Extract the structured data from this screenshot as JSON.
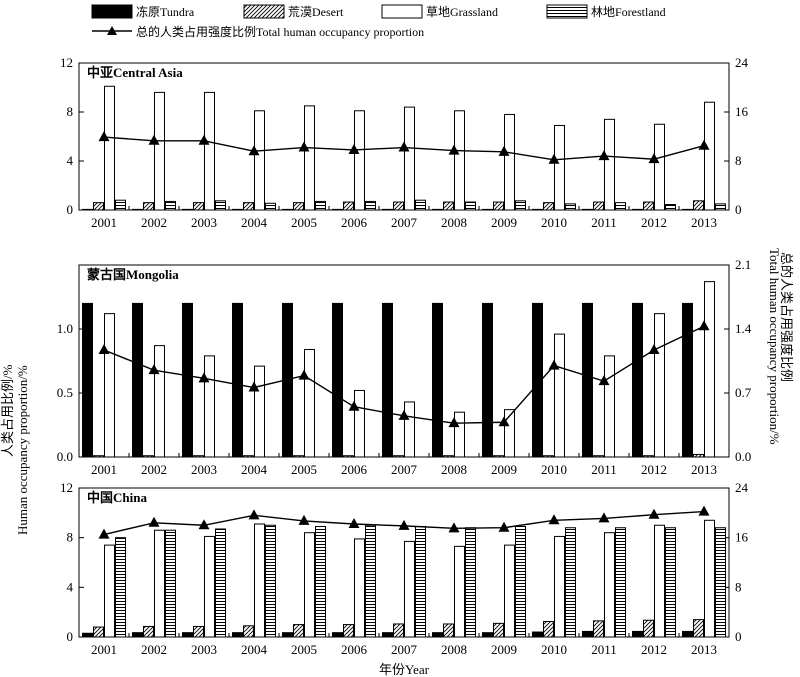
{
  "legend": {
    "tundra": "冻原Tundra",
    "desert": "荒漠Desert",
    "grassland": "草地Grassland",
    "forestland": "林地Forestland",
    "total": "总的人类占用强度比例Total human occupancy proportion"
  },
  "axis_labels": {
    "ylabel_left": "人类占用比例/%",
    "ylabel_left_en": "Human occupancy proportion/%",
    "ylabel_right": "总的人类占用强度比例",
    "ylabel_right_en": "Total human occupancy proportion/%",
    "xlabel": "年份Year"
  },
  "chart_data": [
    {
      "type": "bar",
      "title": "中亚Central Asia",
      "categories": [
        "2001",
        "2002",
        "2003",
        "2004",
        "2005",
        "2006",
        "2007",
        "2008",
        "2009",
        "2010",
        "2011",
        "2012",
        "2013"
      ],
      "ylim": [
        0,
        12
      ],
      "yticks": [
        "0",
        "4",
        "8",
        "12"
      ],
      "y2lim": [
        0,
        24
      ],
      "y2ticks": [
        "0",
        "8",
        "16",
        "24"
      ],
      "series": [
        {
          "name": "冻原Tundra",
          "values": [
            0.05,
            0.05,
            0.05,
            0.05,
            0.05,
            0.05,
            0.05,
            0.05,
            0.05,
            0.05,
            0.05,
            0.05,
            0.05
          ]
        },
        {
          "name": "荒漠Desert",
          "values": [
            0.6,
            0.6,
            0.6,
            0.6,
            0.6,
            0.65,
            0.65,
            0.65,
            0.65,
            0.6,
            0.65,
            0.65,
            0.75
          ]
        },
        {
          "name": "草地Grassland",
          "values": [
            10.1,
            9.6,
            9.6,
            8.1,
            8.5,
            8.1,
            8.4,
            8.1,
            7.8,
            6.9,
            7.4,
            7.0,
            8.8
          ]
        },
        {
          "name": "林地Forestland",
          "values": [
            0.8,
            0.7,
            0.75,
            0.55,
            0.7,
            0.7,
            0.8,
            0.65,
            0.75,
            0.5,
            0.6,
            0.45,
            0.5
          ]
        }
      ],
      "line": {
        "name": "总的人类占用强度比例Total human occupancy proportion",
        "values": [
          11.9,
          11.3,
          11.3,
          9.6,
          10.2,
          9.8,
          10.2,
          9.7,
          9.5,
          8.2,
          8.8,
          8.3,
          10.5
        ]
      }
    },
    {
      "type": "bar",
      "title": "蒙古国Mongolia",
      "categories": [
        "2001",
        "2002",
        "2003",
        "2004",
        "2005",
        "2006",
        "2007",
        "2008",
        "2009",
        "2010",
        "2011",
        "2012",
        "2013"
      ],
      "ylim": [
        0,
        1.5
      ],
      "yticks": [
        "0.0",
        "0.5",
        "1.0"
      ],
      "y2lim": [
        0,
        2.1
      ],
      "y2ticks": [
        "0.0",
        "0.7",
        "1.4",
        "2.1"
      ],
      "series": [
        {
          "name": "冻原Tundra",
          "values": [
            1.2,
            1.2,
            1.2,
            1.2,
            1.2,
            1.2,
            1.2,
            1.2,
            1.2,
            1.2,
            1.2,
            1.2,
            1.2
          ]
        },
        {
          "name": "荒漠Desert",
          "values": [
            0.01,
            0.01,
            0.01,
            0.01,
            0.01,
            0.01,
            0.01,
            0.01,
            0.01,
            0.01,
            0.01,
            0.01,
            0.02
          ]
        },
        {
          "name": "草地Grassland",
          "values": [
            1.12,
            0.87,
            0.79,
            0.71,
            0.84,
            0.52,
            0.43,
            0.35,
            0.37,
            0.96,
            0.79,
            1.12,
            1.37
          ]
        },
        {
          "name": "林地Forestland",
          "values": [
            0,
            0,
            0,
            0,
            0,
            0,
            0,
            0,
            0,
            0,
            0,
            0,
            0
          ]
        }
      ],
      "line": {
        "name": "总的人类占用强度比例Total human occupancy proportion",
        "values": [
          1.17,
          0.95,
          0.86,
          0.76,
          0.89,
          0.55,
          0.45,
          0.37,
          0.38,
          1.0,
          0.83,
          1.17,
          1.43
        ]
      }
    },
    {
      "type": "bar",
      "title": "中国China",
      "categories": [
        "2001",
        "2002",
        "2003",
        "2004",
        "2005",
        "2006",
        "2007",
        "2008",
        "2009",
        "2010",
        "2011",
        "2012",
        "2013"
      ],
      "ylim": [
        0,
        12
      ],
      "yticks": [
        "0",
        "4",
        "8",
        "12"
      ],
      "y2lim": [
        0,
        24
      ],
      "y2ticks": [
        "0",
        "8",
        "16",
        "24"
      ],
      "series": [
        {
          "name": "冻原Tundra",
          "values": [
            0.3,
            0.35,
            0.35,
            0.35,
            0.35,
            0.35,
            0.35,
            0.35,
            0.35,
            0.4,
            0.45,
            0.45,
            0.45
          ]
        },
        {
          "name": "荒漠Desert",
          "values": [
            0.8,
            0.85,
            0.85,
            0.9,
            1.0,
            1.0,
            1.05,
            1.05,
            1.1,
            1.25,
            1.3,
            1.35,
            1.4
          ]
        },
        {
          "name": "草地Grassland",
          "values": [
            7.4,
            8.6,
            8.1,
            9.1,
            8.4,
            7.9,
            7.7,
            7.3,
            7.4,
            8.1,
            8.4,
            9.0,
            9.4
          ]
        },
        {
          "name": "林地Forestland",
          "values": [
            8.0,
            8.6,
            8.7,
            9.0,
            8.9,
            9.0,
            8.9,
            8.8,
            8.9,
            8.8,
            8.8,
            8.8,
            8.8
          ]
        }
      ],
      "line": {
        "name": "总的人类占用强度比例Total human occupancy proportion",
        "values": [
          16.5,
          18.4,
          18.0,
          19.6,
          18.7,
          18.2,
          17.9,
          17.5,
          17.6,
          18.8,
          19.1,
          19.7,
          20.2
        ]
      }
    }
  ]
}
